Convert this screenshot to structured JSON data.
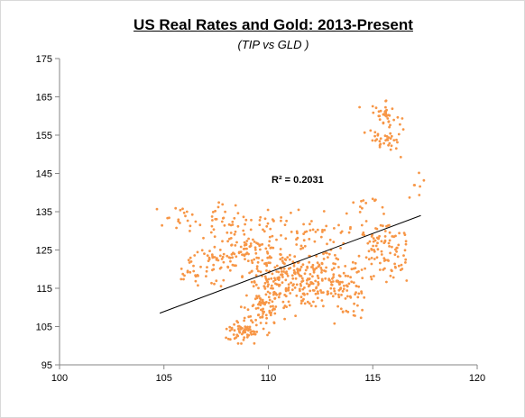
{
  "chart_data": {
    "type": "scatter",
    "title": "US Real Rates and Gold: 2013-Present",
    "subtitle": "(TIP vs GLD )",
    "xlabel": "",
    "ylabel": "",
    "xlim": [
      100,
      120
    ],
    "ylim": [
      95,
      175
    ],
    "x_ticks": [
      "100",
      "105",
      "110",
      "115",
      "120"
    ],
    "y_ticks": [
      "95",
      "105",
      "115",
      "125",
      "135",
      "145",
      "155",
      "165",
      "175"
    ],
    "grid": false,
    "legend": "none",
    "point_color": "#f79646",
    "trendline": {
      "type": "linear",
      "x_start": 104.8,
      "y_start": 108.5,
      "x_end": 117.3,
      "y_end": 134.0,
      "color": "#000000"
    },
    "annotation": "R² = 0.2031",
    "clusters": [
      {
        "cx": 108.7,
        "cy": 103.5,
        "sx": 0.5,
        "sy": 1.5,
        "n": 60
      },
      {
        "cx": 109.7,
        "cy": 110.5,
        "sx": 0.5,
        "sy": 3.0,
        "n": 80
      },
      {
        "cx": 110.8,
        "cy": 116.5,
        "sx": 0.8,
        "sy": 3.0,
        "n": 140
      },
      {
        "cx": 112.5,
        "cy": 118.0,
        "sx": 0.9,
        "sy": 4.0,
        "n": 140
      },
      {
        "cx": 113.9,
        "cy": 115.5,
        "sx": 0.5,
        "sy": 3.5,
        "n": 50
      },
      {
        "cx": 108.8,
        "cy": 124.5,
        "sx": 0.9,
        "sy": 3.0,
        "n": 120
      },
      {
        "cx": 106.7,
        "cy": 120.0,
        "sx": 0.6,
        "sy": 2.5,
        "n": 40
      },
      {
        "cx": 105.8,
        "cy": 133.0,
        "sx": 0.6,
        "sy": 1.5,
        "n": 20
      },
      {
        "cx": 107.6,
        "cy": 133.0,
        "sx": 0.6,
        "sy": 2.0,
        "n": 25
      },
      {
        "cx": 111.5,
        "cy": 129.0,
        "sx": 1.5,
        "sy": 3.0,
        "n": 60
      },
      {
        "cx": 115.3,
        "cy": 126.5,
        "sx": 0.6,
        "sy": 2.5,
        "n": 70
      },
      {
        "cx": 116.0,
        "cy": 120.5,
        "sx": 0.3,
        "sy": 2.0,
        "n": 25
      },
      {
        "cx": 115.6,
        "cy": 160.5,
        "sx": 0.4,
        "sy": 2.0,
        "n": 40
      },
      {
        "cx": 115.7,
        "cy": 154.0,
        "sx": 0.5,
        "sy": 1.5,
        "n": 35
      },
      {
        "cx": 117.0,
        "cy": 142.0,
        "sx": 0.3,
        "sy": 2.0,
        "n": 8
      },
      {
        "cx": 115.0,
        "cy": 137.0,
        "sx": 0.6,
        "sy": 1.5,
        "n": 12
      },
      {
        "cx": 109.5,
        "cy": 134.0,
        "sx": 0.6,
        "sy": 1.0,
        "n": 8
      }
    ]
  }
}
